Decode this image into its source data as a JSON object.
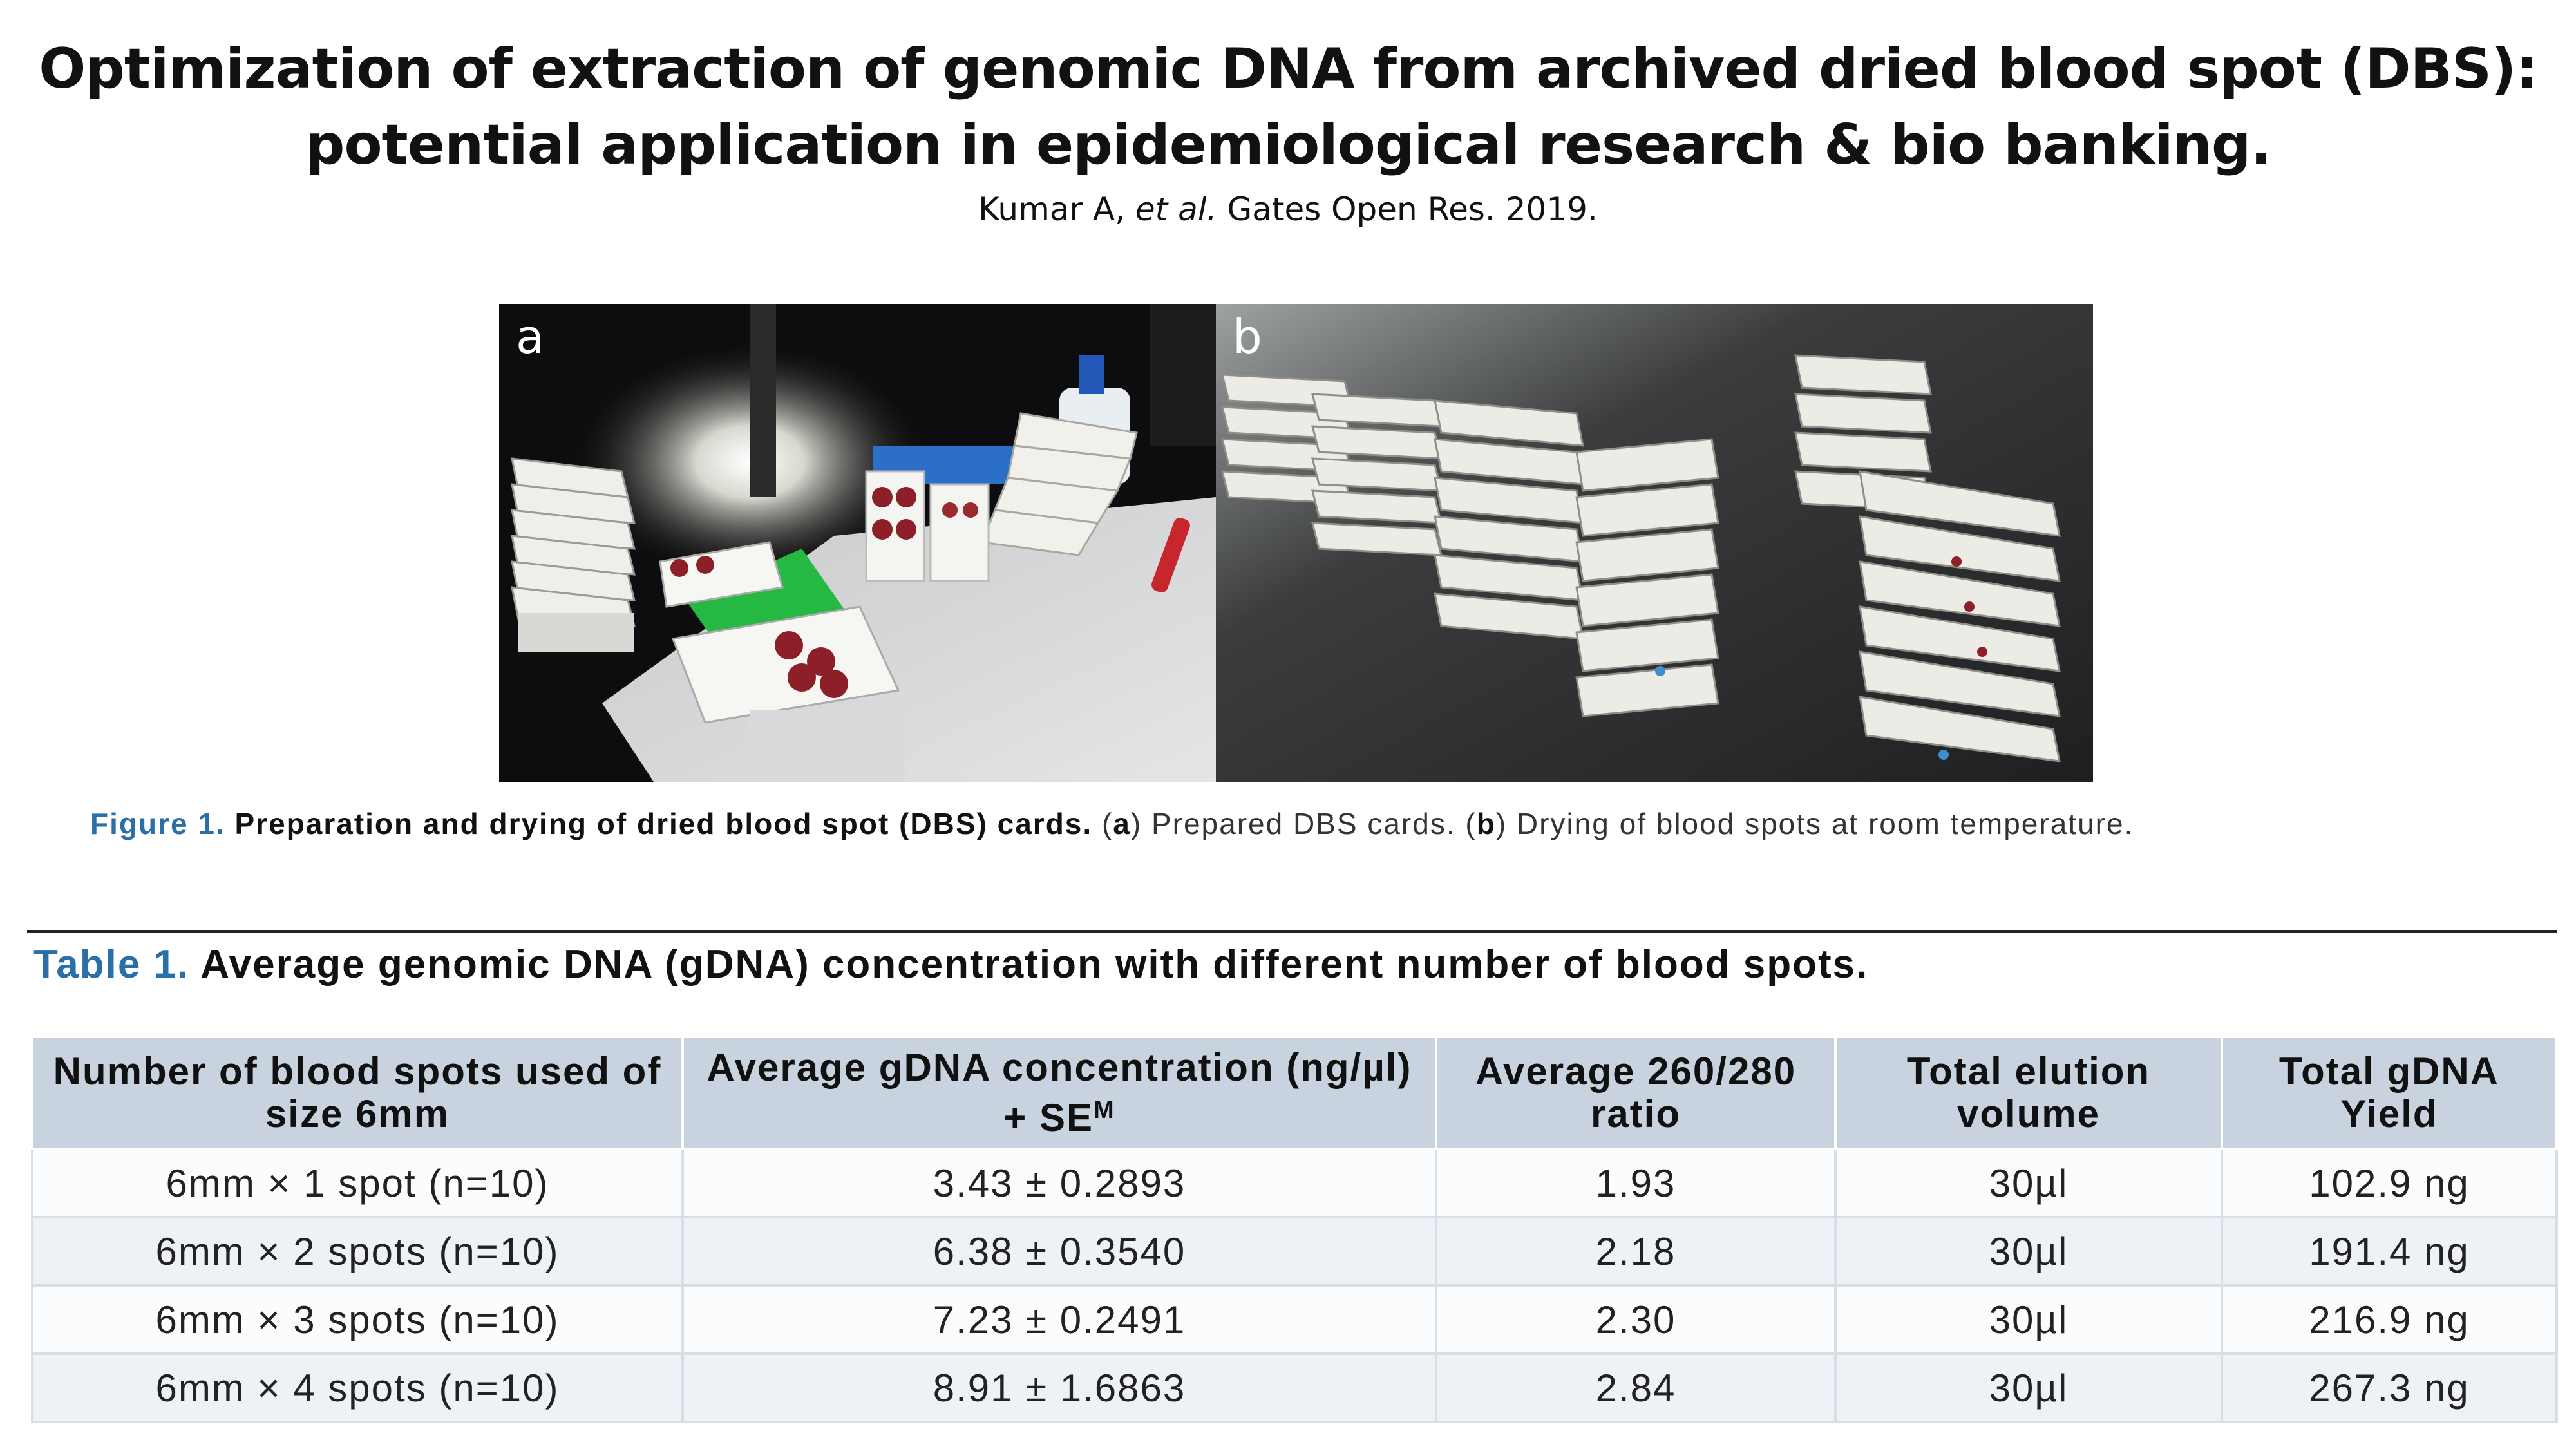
{
  "slide": {
    "title": "Optimization of extraction of genomic DNA from archived dried blood spot (DBS): potential application in epidemiological research & bio banking.",
    "citation_authors": "Kumar A, ",
    "citation_etal": "et al.",
    "citation_source": " Gates Open Res. 2019."
  },
  "figure": {
    "panel_a_label": "a",
    "panel_b_label": "b",
    "caption_number": "Figure 1.",
    "caption_heading": "Preparation and drying of dried blood spot (DBS) cards.",
    "caption_a_open": "(",
    "caption_a_letter": "a",
    "caption_a_text": ") Prepared DBS cards. (",
    "caption_b_letter": "b",
    "caption_b_text": ") Drying of blood spots at room temperature."
  },
  "table": {
    "number": "Table 1.",
    "title": "Average genomic DNA (gDNA) concentration with different number of blood spots.",
    "headers": [
      "Number of blood spots used of size 6mm",
      "Average gDNA concentration (ng/µl) + SE",
      "Average 260/280 ratio",
      "Total elution volume",
      "Total gDNA Yield"
    ],
    "header_superscript": "M",
    "rows": [
      [
        "6mm × 1 spot (n=10)",
        "3.43 ± 0.2893",
        "1.93",
        "30µl",
        "102.9 ng"
      ],
      [
        "6mm × 2 spots (n=10)",
        "6.38 ± 0.3540",
        "2.18",
        "30µl",
        "191.4 ng"
      ],
      [
        "6mm × 3 spots (n=10)",
        "7.23 ± 0.2491",
        "2.30",
        "30µl",
        "216.9 ng"
      ],
      [
        "6mm × 4 spots (n=10)",
        "8.91 ± 1.6863",
        "2.84",
        "30µl",
        "267.3 ng"
      ]
    ]
  }
}
